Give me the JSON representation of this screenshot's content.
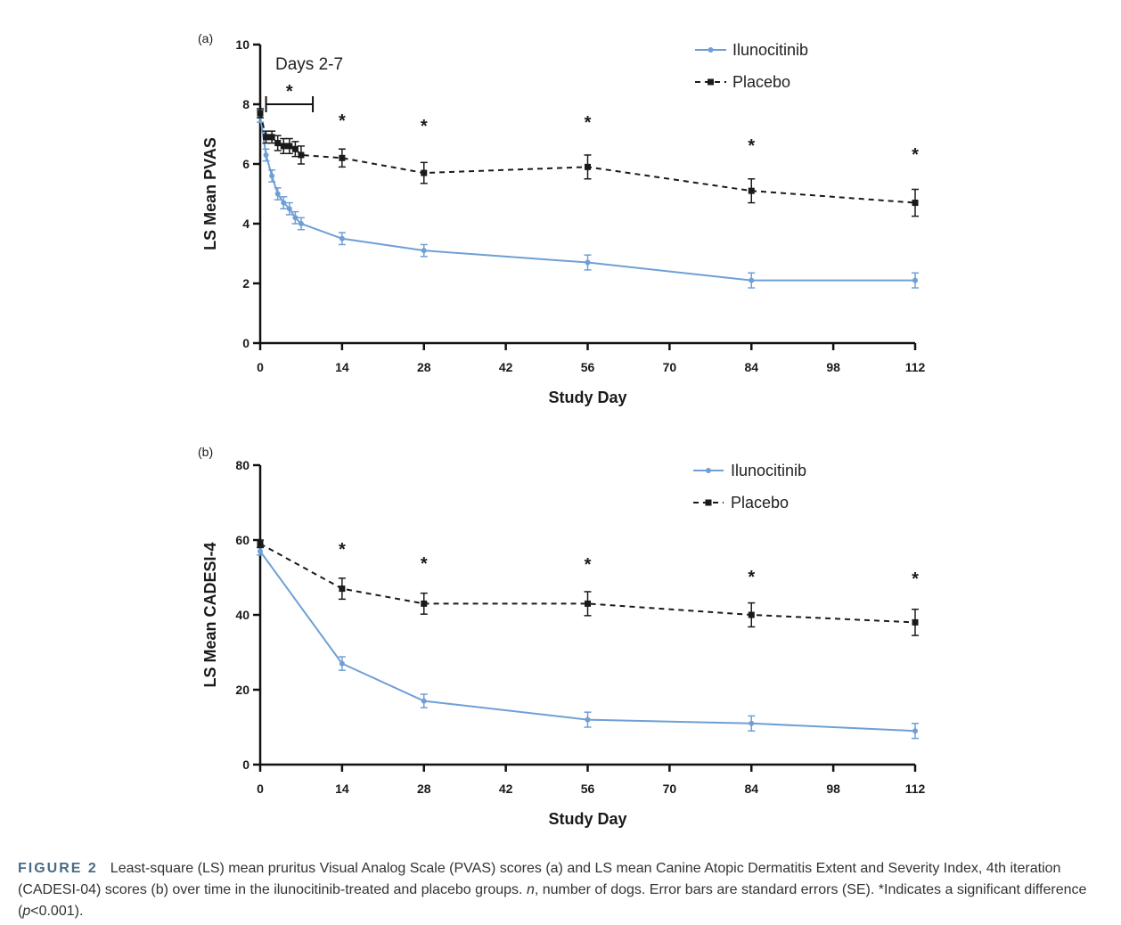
{
  "caption": {
    "label": "FIGURE 2",
    "part1": "Least-square (LS) mean pruritus Visual Analog Scale (PVAS) scores (a) and LS mean Canine Atopic Dermatitis Extent and Severity Index, 4th iteration (CADESI-04) scores (b) over time in the ilunocitinib-treated and placebo groups. ",
    "n_italic": "n",
    "part2": ", number of dogs. Error bars are standard errors (SE). *Indicates a significant difference (",
    "p_italic": "p",
    "part3": "<0.001)."
  },
  "colors": {
    "ilunocitinib": "#6f9fd6",
    "placebo": "#1a1a1a"
  },
  "chart_data": [
    {
      "panel": "(a)",
      "type": "line",
      "xlabel": "Study Day",
      "ylabel": "LS Mean PVAS",
      "xlim": [
        0,
        112
      ],
      "ylim": [
        0,
        10
      ],
      "xticks": [
        0,
        14,
        28,
        42,
        56,
        70,
        84,
        98,
        112
      ],
      "yticks": [
        0,
        2,
        4,
        6,
        8,
        10
      ],
      "legend": "top-right",
      "annotation": {
        "text": "Days 2-7",
        "bracket": [
          1,
          9
        ],
        "marker": "*"
      },
      "series": [
        {
          "name": "Ilunocitinib",
          "style": "solid",
          "x": [
            0,
            1,
            2,
            3,
            4,
            5,
            6,
            7,
            14,
            28,
            56,
            84,
            112
          ],
          "y": [
            7.6,
            6.3,
            5.6,
            5.0,
            4.7,
            4.5,
            4.2,
            4.0,
            3.5,
            3.1,
            2.7,
            2.1,
            2.1
          ],
          "se": [
            0.2,
            0.2,
            0.2,
            0.2,
            0.2,
            0.2,
            0.2,
            0.2,
            0.2,
            0.2,
            0.25,
            0.25,
            0.25
          ]
        },
        {
          "name": "Placebo",
          "style": "dashed",
          "x": [
            0,
            1,
            2,
            3,
            4,
            5,
            6,
            7,
            14,
            28,
            56,
            84,
            112
          ],
          "y": [
            7.7,
            6.9,
            6.9,
            6.7,
            6.6,
            6.6,
            6.5,
            6.3,
            6.2,
            5.7,
            5.9,
            5.1,
            4.7
          ],
          "se": [
            0.15,
            0.2,
            0.2,
            0.25,
            0.25,
            0.25,
            0.25,
            0.3,
            0.3,
            0.35,
            0.4,
            0.4,
            0.45
          ]
        }
      ],
      "significance_days": [
        14,
        28,
        56,
        84,
        112
      ]
    },
    {
      "panel": "(b)",
      "type": "line",
      "xlabel": "Study Day",
      "ylabel": "LS Mean CADESI-4",
      "xlim": [
        0,
        112
      ],
      "ylim": [
        0,
        80
      ],
      "xticks": [
        0,
        14,
        28,
        42,
        56,
        70,
        84,
        98,
        112
      ],
      "yticks": [
        0,
        20,
        40,
        60,
        80
      ],
      "legend": "top-right",
      "series": [
        {
          "name": "Ilunocitinib",
          "style": "solid",
          "x": [
            0,
            14,
            28,
            56,
            84,
            112
          ],
          "y": [
            57,
            27,
            17,
            12,
            11,
            9
          ],
          "se": [
            1.0,
            1.8,
            1.8,
            2.0,
            2.0,
            2.0
          ]
        },
        {
          "name": "Placebo",
          "style": "dashed",
          "x": [
            0,
            14,
            28,
            56,
            84,
            112
          ],
          "y": [
            59,
            47,
            43,
            43,
            40,
            38
          ],
          "se": [
            1.0,
            2.8,
            2.8,
            3.2,
            3.2,
            3.5
          ]
        }
      ],
      "significance_days": [
        14,
        28,
        56,
        84,
        112
      ]
    }
  ]
}
